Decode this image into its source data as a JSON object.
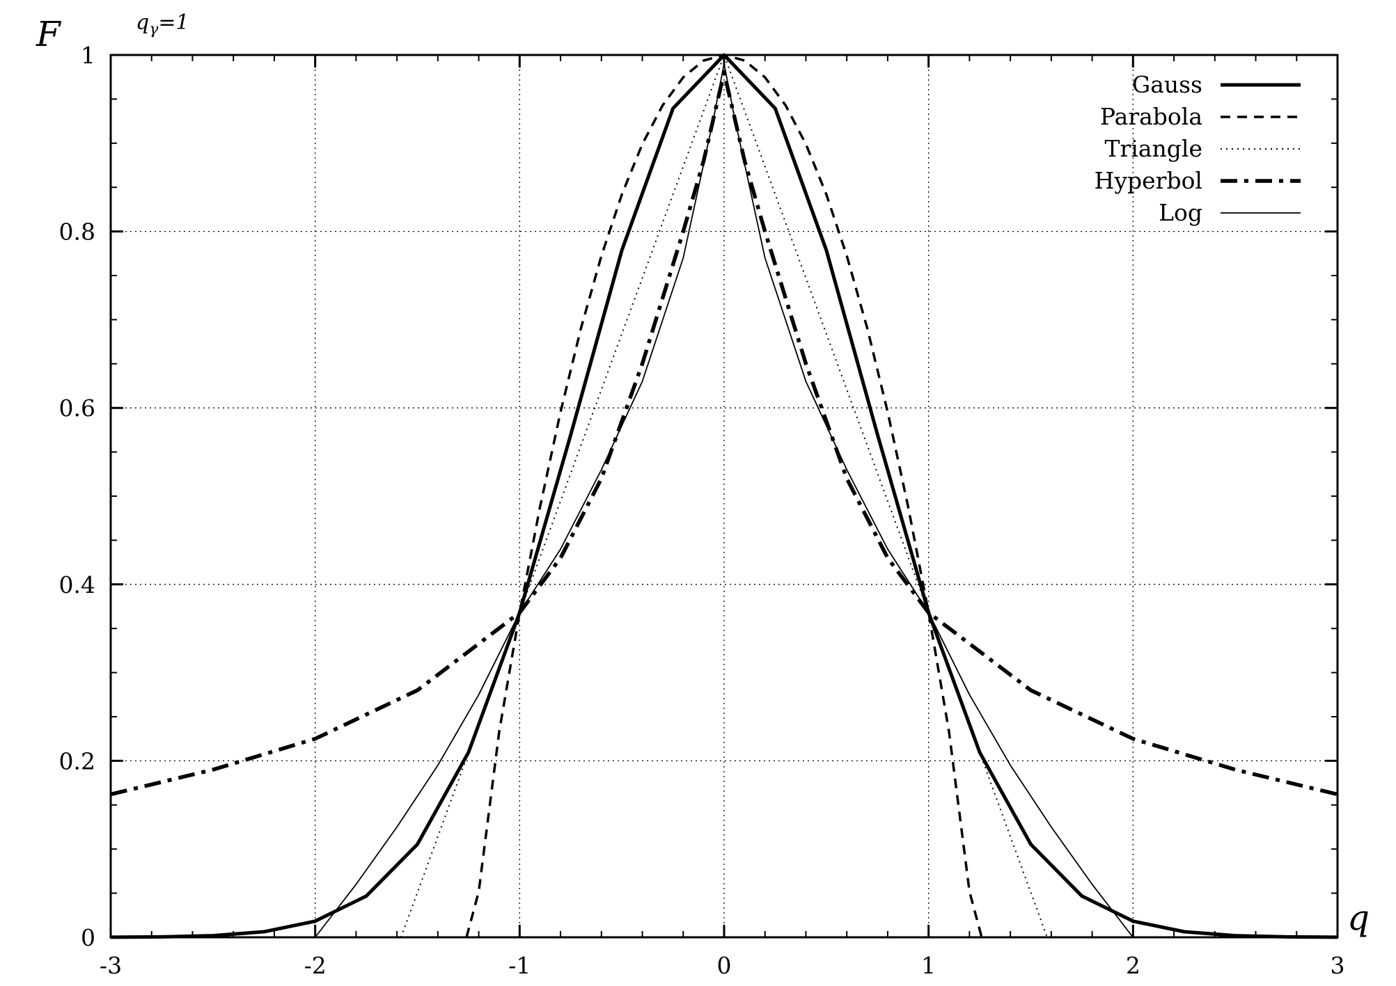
{
  "chart_data": {
    "type": "line",
    "xlabel": "q",
    "ylabel": "F",
    "annotation": {
      "base": "q",
      "subscript": "γ",
      "rest": "=1"
    },
    "xlim": [
      -3,
      3
    ],
    "ylim": [
      0,
      1
    ],
    "x_ticks": [
      -3,
      -2,
      -1,
      0,
      1,
      2,
      3
    ],
    "x_tick_labels": [
      "-3",
      "-2",
      "-1",
      "0",
      "1",
      "2",
      "3"
    ],
    "y_ticks": [
      0,
      0.2,
      0.4,
      0.6,
      0.8,
      1
    ],
    "y_tick_labels": [
      "0",
      "0.2",
      "0.4",
      "0.6",
      "0.8",
      "1"
    ],
    "grid": true,
    "legend_position": "top-right",
    "series": [
      {
        "name": "Gauss",
        "style": "solid-thick",
        "x": [
          -3,
          -2.75,
          -2.5,
          -2.25,
          -2,
          -1.75,
          -1.5,
          -1.25,
          -1,
          -0.75,
          -0.5,
          -0.25,
          0,
          0.25,
          0.5,
          0.75,
          1,
          1.25,
          1.5,
          1.75,
          2,
          2.25,
          2.5,
          2.75,
          3
        ],
        "y": [
          0.0001,
          0.0005,
          0.0019,
          0.0063,
          0.0183,
          0.0468,
          0.1054,
          0.2096,
          0.3679,
          0.5698,
          0.7788,
          0.9394,
          1,
          0.9394,
          0.7788,
          0.5698,
          0.3679,
          0.2096,
          0.1054,
          0.0468,
          0.0183,
          0.0063,
          0.0019,
          0.0005,
          0.0001
        ]
      },
      {
        "name": "Parabola",
        "style": "dashed",
        "x": [
          -1.26,
          -1.2,
          -1.1,
          -1,
          -0.9,
          -0.8,
          -0.7,
          -0.6,
          -0.5,
          -0.4,
          -0.3,
          -0.2,
          -0.1,
          0,
          0.1,
          0.2,
          0.3,
          0.4,
          0.5,
          0.6,
          0.7,
          0.8,
          0.9,
          1,
          1.1,
          1.2,
          1.26
        ],
        "y": [
          0,
          0.0519,
          0.2331,
          0.3679,
          0.488,
          0.5955,
          0.6903,
          0.7724,
          0.842,
          0.8989,
          0.9431,
          0.9747,
          0.9937,
          1,
          0.9937,
          0.9747,
          0.9431,
          0.8989,
          0.842,
          0.7724,
          0.6903,
          0.5955,
          0.488,
          0.3679,
          0.2331,
          0.0519,
          0
        ]
      },
      {
        "name": "Triangle",
        "style": "dotted",
        "x": [
          -1.58,
          -1,
          0,
          1,
          1.58
        ],
        "y": [
          0,
          0.3679,
          1,
          0.3679,
          0
        ]
      },
      {
        "name": "Hyperbol",
        "style": "dash-dot-thick",
        "x": [
          -3,
          -2.5,
          -2,
          -1.5,
          -1,
          -0.8,
          -0.6,
          -0.4,
          -0.2,
          -0.1,
          -0.05,
          -0.02,
          0,
          0.02,
          0.05,
          0.1,
          0.2,
          0.4,
          0.6,
          0.8,
          1,
          1.5,
          2,
          2.5,
          3
        ],
        "y": [
          0.162,
          0.19,
          0.225,
          0.28,
          0.3679,
          0.43,
          0.52,
          0.65,
          0.8,
          0.88,
          0.93,
          0.96,
          0.98,
          0.96,
          0.93,
          0.88,
          0.8,
          0.65,
          0.52,
          0.43,
          0.3679,
          0.28,
          0.225,
          0.19,
          0.162
        ]
      },
      {
        "name": "Log",
        "style": "solid-thin",
        "x": [
          -2,
          -1.8,
          -1.6,
          -1.4,
          -1.2,
          -1,
          -0.8,
          -0.6,
          -0.4,
          -0.2,
          -0.05,
          0,
          0.05,
          0.2,
          0.4,
          0.6,
          0.8,
          1,
          1.2,
          1.4,
          1.6,
          1.8,
          2
        ],
        "y": [
          0,
          0.06,
          0.125,
          0.195,
          0.275,
          0.3679,
          0.44,
          0.53,
          0.63,
          0.77,
          0.93,
          0.99,
          0.93,
          0.77,
          0.63,
          0.53,
          0.44,
          0.3679,
          0.275,
          0.195,
          0.125,
          0.06,
          0
        ]
      }
    ]
  }
}
